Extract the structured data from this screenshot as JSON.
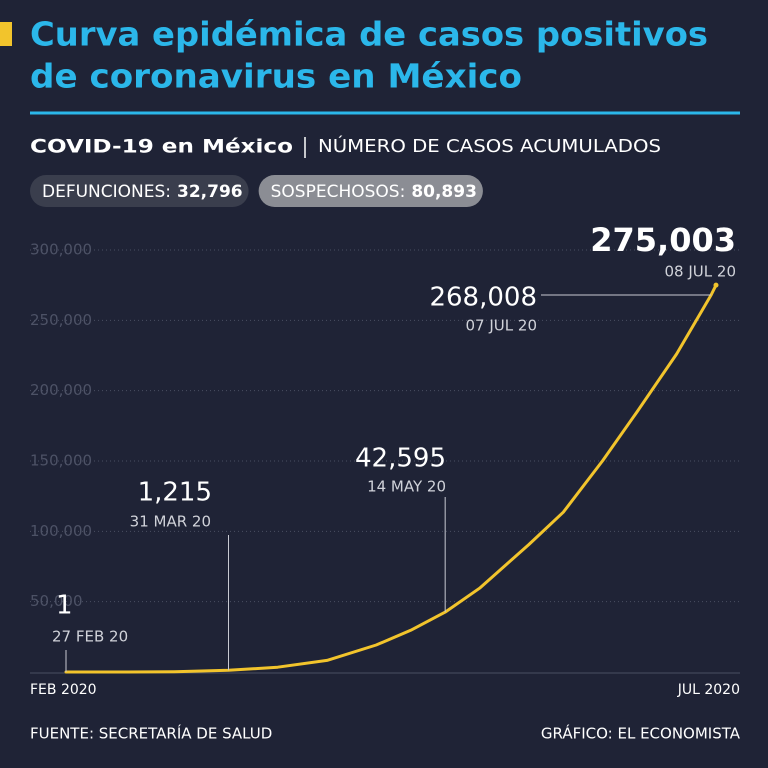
{
  "header": {
    "title_lines": [
      "Curva epidémica de casos positivos",
      "de coronavirus en México"
    ],
    "subtitle_bold": "COVID-19 en México",
    "subtitle": "NÚMERO DE CASOS ACUMULADOS",
    "badges": [
      {
        "label": "DEFUNCIONES:",
        "value": "32,796"
      },
      {
        "label": "SOSPECHOSOS:",
        "value": "80,893"
      }
    ]
  },
  "chart_data": {
    "type": "line",
    "color": "#f2c42c",
    "grid": true,
    "x": [
      "2020-02-27",
      "2020-03-10",
      "2020-03-20",
      "2020-03-31",
      "2020-04-10",
      "2020-04-20",
      "2020-04-30",
      "2020-05-07",
      "2020-05-14",
      "2020-05-21",
      "2020-05-31",
      "2020-06-07",
      "2020-06-15",
      "2020-06-22",
      "2020-06-30",
      "2020-07-07",
      "2020-07-08"
    ],
    "values": [
      1,
      7,
      203,
      1215,
      3441,
      8261,
      19224,
      29616,
      42595,
      59567,
      90664,
      113619,
      150264,
      185122,
      226089,
      268008,
      275003
    ],
    "xlim": [
      "2020-02-27",
      "2020-07-08"
    ],
    "xticks": [
      {
        "value": "2020-02-27",
        "label": "FEB 2020"
      },
      {
        "value": "2020-07-08",
        "label": "JUL 2020"
      }
    ],
    "ylim": [
      0,
      300000
    ],
    "yticks": [
      {
        "value": 50000,
        "label": "50,000"
      },
      {
        "value": 100000,
        "label": "100,000"
      },
      {
        "value": 150000,
        "label": "150,000"
      },
      {
        "value": 200000,
        "label": "200,000"
      },
      {
        "value": 250000,
        "label": "250,000"
      },
      {
        "value": 300000,
        "label": "300,000"
      }
    ],
    "annotations": [
      {
        "x": "2020-02-27",
        "value": 1,
        "value_label": "1",
        "date_label": "27 FEB 20"
      },
      {
        "x": "2020-03-31",
        "value": 1215,
        "value_label": "1,215",
        "date_label": "31 MAR 20"
      },
      {
        "x": "2020-05-14",
        "value": 42595,
        "value_label": "42,595",
        "date_label": "14 MAY 20"
      },
      {
        "x": "2020-07-07",
        "value": 268008,
        "value_label": "268,008",
        "date_label": "07 JUL 20"
      },
      {
        "x": "2020-07-08",
        "value": 275003,
        "value_label": "275,003",
        "date_label": "08 JUL 20"
      }
    ]
  },
  "footer": {
    "source": "FUENTE: SECRETARÍA DE SALUD",
    "credit": "GRÁFICO: EL ECONOMISTA"
  }
}
